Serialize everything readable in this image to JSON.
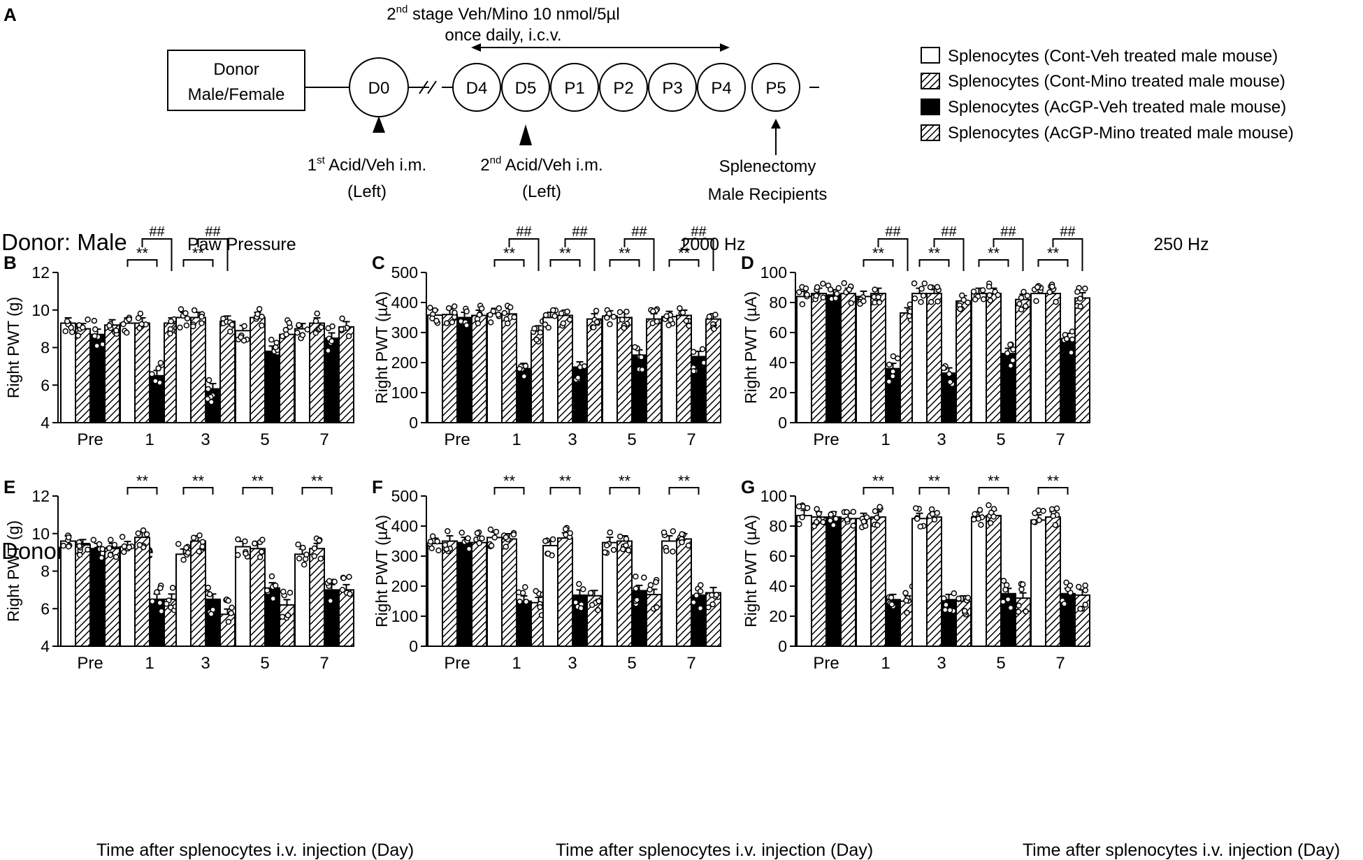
{
  "figure": {
    "panel_a_letter": "A",
    "title_line1_pre": "2",
    "title_line1_sup": "nd",
    "title_line1_post": " stage Veh/Mino 10 nmol/5µl",
    "title_line2": "once daily, i.c.v.",
    "donor_box": [
      "Donor",
      "Male/Female"
    ],
    "timeline_days": [
      "D0",
      "D4",
      "D5",
      "P1",
      "P2",
      "P3",
      "P4",
      "P5"
    ],
    "first_injection": {
      "pre": "1",
      "sup": "st",
      "post": " Acid/Veh i.m.",
      "line2": "(Left)"
    },
    "second_injection": {
      "pre": "2",
      "sup": "nd",
      "post": " Acid/Veh i.m.",
      "line2": "(Left)"
    },
    "splenectomy": [
      "Splenectomy",
      "Male Recipients"
    ],
    "legend": [
      "Splenocytes (Cont-Veh treated male mouse)",
      "Splenocytes (Cont-Mino treated male mouse)",
      "Splenocytes (AcGP-Veh treated male mouse)",
      "Splenocytes (AcGP-Mino treated male mouse)"
    ],
    "row_labels": [
      "Donor: Male",
      "Donor: Female"
    ],
    "column_titles": [
      "Paw Pressure",
      "2000 Hz",
      "250 Hz"
    ],
    "x_axis_title": "Time after splenocytes i.v. injection (Day)",
    "sig_star": "**",
    "sig_hash": "##"
  },
  "chart_data": [
    {
      "panel": "B",
      "type": "bar",
      "title": "Paw Pressure",
      "ylabel": "Right PWT (g)",
      "ylim": [
        4,
        12
      ],
      "yticks": [
        4,
        6,
        8,
        10,
        12
      ],
      "categories": [
        "Pre",
        "1",
        "3",
        "5",
        "7"
      ],
      "series": [
        {
          "name": "Splenocytes (Cont-Veh treated male mouse)",
          "values": [
            9.3,
            9.3,
            9.6,
            8.9,
            9.0
          ]
        },
        {
          "name": "Splenocytes (Cont-Mino treated male mouse)",
          "values": [
            9.0,
            9.3,
            9.6,
            9.6,
            9.3
          ]
        },
        {
          "name": "Splenocytes (AcGP-Veh treated male mouse)",
          "values": [
            8.7,
            6.5,
            5.8,
            7.8,
            8.5
          ]
        },
        {
          "name": "Splenocytes (AcGP-Mino treated male mouse)",
          "values": [
            9.2,
            9.3,
            9.4,
            8.7,
            9.1
          ]
        }
      ],
      "significance": [
        {
          "day": "1",
          "star": true,
          "hash": true
        },
        {
          "day": "3",
          "star": true,
          "hash": true
        }
      ]
    },
    {
      "panel": "C",
      "type": "bar",
      "title": "2000 Hz",
      "ylabel": "Right PWT (µA)",
      "ylim": [
        0,
        500
      ],
      "yticks": [
        0,
        100,
        200,
        300,
        400,
        500
      ],
      "categories": [
        "Pre",
        "1",
        "3",
        "5",
        "7"
      ],
      "series": [
        {
          "name": "Splenocytes (Cont-Veh treated male mouse)",
          "values": [
            358,
            363,
            350,
            355,
            353
          ]
        },
        {
          "name": "Splenocytes (Cont-Mino treated male mouse)",
          "values": [
            360,
            362,
            357,
            350,
            357
          ]
        },
        {
          "name": "Splenocytes (AcGP-Veh treated male mouse)",
          "values": [
            350,
            180,
            185,
            225,
            220
          ]
        },
        {
          "name": "Splenocytes (AcGP-Mino treated male mouse)",
          "values": [
            357,
            305,
            345,
            345,
            345
          ]
        }
      ],
      "significance": [
        {
          "day": "1",
          "star": true,
          "hash": true
        },
        {
          "day": "3",
          "star": true,
          "hash": true
        },
        {
          "day": "5",
          "star": true,
          "hash": true
        },
        {
          "day": "7",
          "star": true,
          "hash": true
        }
      ]
    },
    {
      "panel": "D",
      "type": "bar",
      "title": "250 Hz",
      "ylabel": "Right PWT (µA)",
      "ylim": [
        0,
        100
      ],
      "yticks": [
        0,
        20,
        40,
        60,
        80,
        100
      ],
      "categories": [
        "Pre",
        "1",
        "3",
        "5",
        "7"
      ],
      "series": [
        {
          "name": "Splenocytes (Cont-Veh treated male mouse)",
          "values": [
            84,
            84,
            86,
            86,
            86
          ]
        },
        {
          "name": "Splenocytes (Cont-Mino treated male mouse)",
          "values": [
            86,
            86,
            86,
            86,
            86
          ]
        },
        {
          "name": "Splenocytes (AcGP-Veh treated male mouse)",
          "values": [
            85,
            36,
            33,
            46,
            56
          ]
        },
        {
          "name": "Splenocytes (AcGP-Mino treated male mouse)",
          "values": [
            86,
            73,
            81,
            82,
            83
          ]
        }
      ],
      "significance": [
        {
          "day": "1",
          "star": true,
          "hash": true
        },
        {
          "day": "3",
          "star": true,
          "hash": true
        },
        {
          "day": "5",
          "star": true,
          "hash": true
        },
        {
          "day": "7",
          "star": true,
          "hash": true
        }
      ]
    },
    {
      "panel": "E",
      "type": "bar",
      "ylabel": "Right PWT (g)",
      "xlabel": "Time after splenocytes i.v. injection (Day)",
      "ylim": [
        4,
        12
      ],
      "yticks": [
        4,
        6,
        8,
        10,
        12
      ],
      "categories": [
        "Pre",
        "1",
        "3",
        "5",
        "7"
      ],
      "series": [
        {
          "name": "Splenocytes (Cont-Veh treated male mouse)",
          "values": [
            9.6,
            9.3,
            8.9,
            9.3,
            8.9
          ]
        },
        {
          "name": "Splenocytes (Cont-Mino treated male mouse)",
          "values": [
            9.4,
            9.8,
            9.6,
            9.2,
            9.2
          ]
        },
        {
          "name": "Splenocytes (AcGP-Veh treated male mouse)",
          "values": [
            9.2,
            6.5,
            6.5,
            7.1,
            7.0
          ]
        },
        {
          "name": "Splenocytes (AcGP-Mino treated male mouse)",
          "values": [
            9.2,
            6.5,
            5.7,
            6.2,
            7.0
          ]
        }
      ],
      "significance": [
        {
          "day": "1",
          "star": true,
          "hash": false
        },
        {
          "day": "3",
          "star": true,
          "hash": false
        },
        {
          "day": "5",
          "star": true,
          "hash": false
        },
        {
          "day": "7",
          "star": true,
          "hash": false
        }
      ]
    },
    {
      "panel": "F",
      "type": "bar",
      "ylabel": "Right PWT (µA)",
      "xlabel": "Time after splenocytes i.v. injection (Day)",
      "ylim": [
        0,
        500
      ],
      "yticks": [
        0,
        100,
        200,
        300,
        400,
        500
      ],
      "categories": [
        "Pre",
        "1",
        "3",
        "5",
        "7"
      ],
      "series": [
        {
          "name": "Splenocytes (Cont-Veh treated male mouse)",
          "values": [
            342,
            362,
            335,
            345,
            350
          ]
        },
        {
          "name": "Splenocytes (Cont-Mino treated male mouse)",
          "values": [
            350,
            357,
            360,
            350,
            357
          ]
        },
        {
          "name": "Splenocytes (AcGP-Veh treated male mouse)",
          "values": [
            345,
            150,
            170,
            185,
            170
          ]
        },
        {
          "name": "Splenocytes (AcGP-Mino treated male mouse)",
          "values": [
            345,
            145,
            168,
            172,
            178
          ]
        }
      ],
      "significance": [
        {
          "day": "1",
          "star": true,
          "hash": false
        },
        {
          "day": "3",
          "star": true,
          "hash": false
        },
        {
          "day": "5",
          "star": true,
          "hash": false
        },
        {
          "day": "7",
          "star": true,
          "hash": false
        }
      ]
    },
    {
      "panel": "G",
      "type": "bar",
      "ylabel": "Right PWT (µA)",
      "xlabel": "Time after splenocytes i.v. injection (Day)",
      "ylim": [
        0,
        100
      ],
      "yticks": [
        0,
        20,
        40,
        60,
        80,
        100
      ],
      "categories": [
        "Pre",
        "1",
        "3",
        "5",
        "7"
      ],
      "series": [
        {
          "name": "Splenocytes (Cont-Veh treated male mouse)",
          "values": [
            87,
            85,
            85,
            86,
            84
          ]
        },
        {
          "name": "Splenocytes (Cont-Mino treated male mouse)",
          "values": [
            86,
            86,
            86,
            87,
            86
          ]
        },
        {
          "name": "Splenocytes (AcGP-Veh treated male mouse)",
          "values": [
            86,
            31,
            31,
            35,
            35
          ]
        },
        {
          "name": "Splenocytes (AcGP-Mino treated male mouse)",
          "values": [
            85,
            30,
            30,
            32,
            34
          ]
        }
      ],
      "significance": [
        {
          "day": "1",
          "star": true,
          "hash": false
        },
        {
          "day": "3",
          "star": true,
          "hash": false
        },
        {
          "day": "5",
          "star": true,
          "hash": false
        },
        {
          "day": "7",
          "star": true,
          "hash": false
        }
      ]
    }
  ]
}
